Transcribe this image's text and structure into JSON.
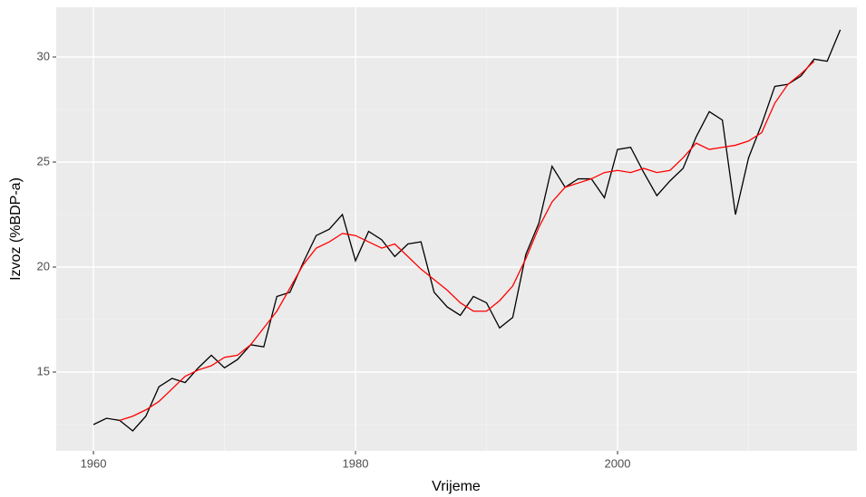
{
  "chart_data": {
    "type": "line",
    "x_label": "Vrijeme",
    "y_label": "Izvoz (%BDP-a)",
    "x": [
      1960,
      1961,
      1962,
      1963,
      1964,
      1965,
      1966,
      1967,
      1968,
      1969,
      1970,
      1971,
      1972,
      1973,
      1974,
      1975,
      1976,
      1977,
      1978,
      1979,
      1980,
      1981,
      1982,
      1983,
      1984,
      1985,
      1986,
      1987,
      1988,
      1989,
      1990,
      1991,
      1992,
      1993,
      1994,
      1995,
      1996,
      1997,
      1998,
      1999,
      2000,
      2001,
      2002,
      2003,
      2004,
      2005,
      2006,
      2007,
      2008,
      2009,
      2010,
      2011,
      2012,
      2013,
      2014,
      2015,
      2016,
      2017
    ],
    "series": [
      {
        "color": "#000000",
        "values": [
          12.5,
          12.8,
          12.7,
          12.2,
          12.9,
          14.3,
          14.7,
          14.5,
          15.2,
          15.8,
          15.2,
          15.6,
          16.3,
          16.2,
          18.6,
          18.8,
          20.2,
          21.5,
          21.8,
          22.5,
          20.3,
          21.7,
          21.3,
          20.5,
          21.1,
          21.2,
          18.8,
          18.1,
          17.7,
          18.6,
          18.3,
          17.1,
          17.6,
          20.6,
          22.1,
          24.8,
          23.8,
          24.2,
          24.2,
          23.3,
          25.6,
          25.7,
          24.5,
          23.4,
          24.1,
          24.7,
          26.2,
          27.4,
          27.0,
          22.5,
          25.2,
          26.8,
          28.6,
          28.7,
          29.1,
          29.9,
          29.8,
          31.3
        ]
      },
      {
        "color": "#ff0000",
        "values": [
          null,
          null,
          12.7,
          12.9,
          13.2,
          13.6,
          14.2,
          14.8,
          15.1,
          15.3,
          15.7,
          15.8,
          16.3,
          17.1,
          17.9,
          19.0,
          20.1,
          20.9,
          21.2,
          21.6,
          21.5,
          21.2,
          20.9,
          21.1,
          20.5,
          19.9,
          19.4,
          18.9,
          18.3,
          17.9,
          17.9,
          18.4,
          19.1,
          20.4,
          21.9,
          23.1,
          23.8,
          24.0,
          24.2,
          24.5,
          24.6,
          24.5,
          24.7,
          24.5,
          24.6,
          25.2,
          25.9,
          25.6,
          25.7,
          25.8,
          26.0,
          26.4,
          27.8,
          28.7,
          29.2,
          29.8,
          null,
          null
        ]
      }
    ],
    "xlim": [
      1957.16,
      2018.27
    ],
    "xticks": [
      1960,
      1980,
      2000
    ],
    "ylim": [
      11.25,
      32.37
    ],
    "yticks": [
      15,
      20,
      25,
      30
    ],
    "grid": true
  }
}
